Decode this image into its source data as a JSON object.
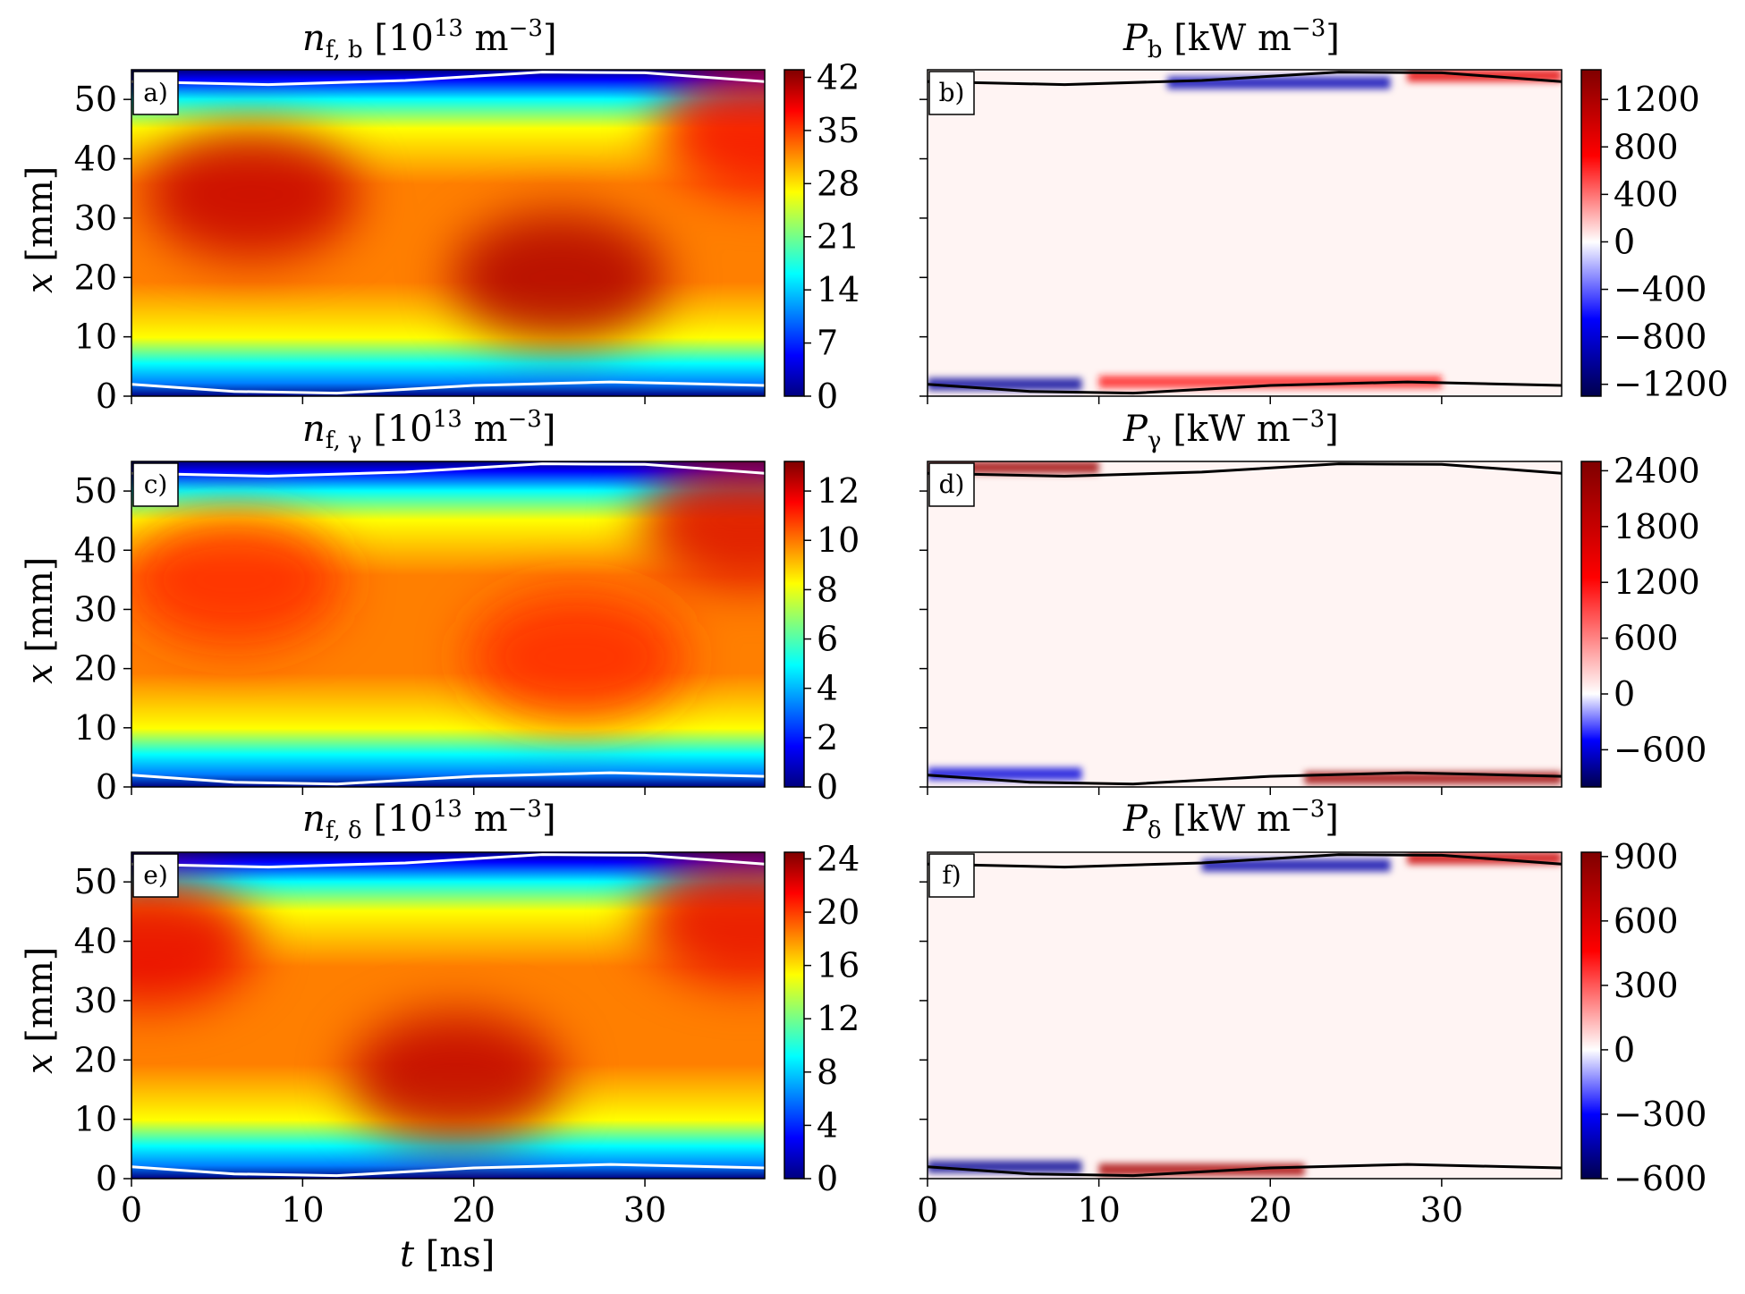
{
  "colors": {
    "jet": [
      "#00007f",
      "#0000ff",
      "#007fff",
      "#00ffff",
      "#7fff7f",
      "#ffff00",
      "#ff7f00",
      "#ff0000",
      "#7f0000"
    ],
    "seismic": [
      "#00004c",
      "#0000ff",
      "#ffffff",
      "#ff0000",
      "#7f0000"
    ],
    "boundary_left": "#ffffff",
    "boundary_right": "#000000"
  },
  "axes": {
    "x_label_var": "t",
    "x_label_unit": "[ns]",
    "y_label_var": "x",
    "y_label_unit": "[mm]"
  },
  "chart_data": [
    {
      "id": "a",
      "panel_label": "a)",
      "type": "heatmap",
      "title": {
        "var": "n",
        "sub": "f, b",
        "unit_pre": "[10",
        "unit_exp": "13",
        "unit_mid": " m",
        "unit_exp2": "−3",
        "unit_post": "]"
      },
      "xlim": [
        0,
        37
      ],
      "ylim": [
        0,
        55
      ],
      "xticks": [
        0,
        10,
        20,
        30
      ],
      "yticks": [
        0,
        10,
        20,
        30,
        40,
        50
      ],
      "colormap": "jet",
      "clim": [
        0,
        43
      ],
      "cbar_ticks": [
        0,
        7,
        14,
        21,
        28,
        35,
        42
      ],
      "cbar_tick_labels": [
        "0",
        "7",
        "14",
        "21",
        "28",
        "35",
        "42"
      ],
      "peaks": [
        {
          "t": 7,
          "x": 34,
          "value": 40
        },
        {
          "t": 25,
          "x": 20,
          "value": 41
        },
        {
          "t": 37,
          "x": 45,
          "value": 38
        }
      ],
      "boundaries": {
        "lower": [
          [
            0,
            2
          ],
          [
            6,
            0.8
          ],
          [
            12,
            0.5
          ],
          [
            20,
            1.8
          ],
          [
            28,
            2.4
          ],
          [
            37,
            1.8
          ]
        ],
        "upper": [
          [
            0,
            53
          ],
          [
            8,
            52.5
          ],
          [
            16,
            53.2
          ],
          [
            24,
            54.6
          ],
          [
            30,
            54.5
          ],
          [
            37,
            53
          ]
        ]
      }
    },
    {
      "id": "b",
      "panel_label": "b)",
      "type": "heatmap",
      "title": {
        "var": "P",
        "sub": "b",
        "unit_pre": "[kW m",
        "unit_exp": "−3",
        "unit_post": "]"
      },
      "xlim": [
        0,
        37
      ],
      "ylim": [
        0,
        55
      ],
      "xticks": [
        0,
        10,
        20,
        30
      ],
      "yticks": [
        0,
        10,
        20,
        30,
        40,
        50
      ],
      "colormap": "seismic",
      "clim": [
        -1300,
        1450
      ],
      "cbar_ticks": [
        -1200,
        -800,
        -400,
        0,
        400,
        800,
        1200
      ],
      "cbar_tick_labels": [
        "−1200",
        "−800",
        "−400",
        "0",
        "400",
        "800",
        "1200"
      ],
      "features": [
        {
          "t0": 0,
          "t1": 9,
          "x": 2,
          "value": -1000
        },
        {
          "t0": 10,
          "t1": 30,
          "x": 2.4,
          "value": 700
        },
        {
          "t0": 14,
          "t1": 27,
          "x": 52.8,
          "value": -900
        },
        {
          "t0": 28,
          "t1": 37,
          "x": 54,
          "value": 900
        }
      ],
      "boundaries": {
        "lower": [
          [
            0,
            2
          ],
          [
            6,
            0.8
          ],
          [
            12,
            0.5
          ],
          [
            20,
            1.8
          ],
          [
            28,
            2.4
          ],
          [
            37,
            1.8
          ]
        ],
        "upper": [
          [
            0,
            53
          ],
          [
            8,
            52.5
          ],
          [
            16,
            53.2
          ],
          [
            24,
            54.6
          ],
          [
            30,
            54.5
          ],
          [
            37,
            53
          ]
        ]
      }
    },
    {
      "id": "c",
      "panel_label": "c)",
      "type": "heatmap",
      "title": {
        "var": "n",
        "sub": "f, γ",
        "unit_pre": "[10",
        "unit_exp": "13",
        "unit_mid": " m",
        "unit_exp2": "−3",
        "unit_post": "]"
      },
      "xlim": [
        0,
        37
      ],
      "ylim": [
        0,
        55
      ],
      "xticks": [
        0,
        10,
        20,
        30
      ],
      "yticks": [
        0,
        10,
        20,
        30,
        40,
        50
      ],
      "colormap": "jet",
      "clim": [
        0,
        13.2
      ],
      "cbar_ticks": [
        0,
        2,
        4,
        6,
        8,
        10,
        12
      ],
      "cbar_tick_labels": [
        "0",
        "2",
        "4",
        "6",
        "8",
        "10",
        "12"
      ],
      "peaks": [
        {
          "t": 6,
          "x": 35,
          "value": 11
        },
        {
          "t": 26,
          "x": 22,
          "value": 11
        },
        {
          "t": 36,
          "x": 45,
          "value": 12
        }
      ],
      "boundaries": {
        "lower": [
          [
            0,
            2
          ],
          [
            6,
            0.8
          ],
          [
            12,
            0.5
          ],
          [
            20,
            1.8
          ],
          [
            28,
            2.4
          ],
          [
            37,
            1.8
          ]
        ],
        "upper": [
          [
            0,
            53
          ],
          [
            8,
            52.5
          ],
          [
            16,
            53.2
          ],
          [
            24,
            54.6
          ],
          [
            30,
            54.5
          ],
          [
            37,
            53
          ]
        ]
      }
    },
    {
      "id": "d",
      "panel_label": "d)",
      "type": "heatmap",
      "title": {
        "var": "P",
        "sub": "γ",
        "unit_pre": "[kW m",
        "unit_exp": "−3",
        "unit_post": "]"
      },
      "xlim": [
        0,
        37
      ],
      "ylim": [
        0,
        55
      ],
      "xticks": [
        0,
        10,
        20,
        30
      ],
      "yticks": [
        0,
        10,
        20,
        30,
        40,
        50
      ],
      "colormap": "seismic",
      "clim": [
        -1000,
        2500
      ],
      "cbar_ticks": [
        -600,
        0,
        600,
        1200,
        1800,
        2400
      ],
      "cbar_tick_labels": [
        "−600",
        "0",
        "600",
        "1200",
        "1800",
        "2400"
      ],
      "features": [
        {
          "t0": 0,
          "t1": 10,
          "x": 54,
          "value": 2300
        },
        {
          "t0": 22,
          "t1": 37,
          "x": 1.5,
          "value": 2300
        },
        {
          "t0": 0,
          "t1": 9,
          "x": 2.2,
          "value": -300
        }
      ],
      "boundaries": {
        "lower": [
          [
            0,
            2
          ],
          [
            6,
            0.8
          ],
          [
            12,
            0.5
          ],
          [
            20,
            1.8
          ],
          [
            28,
            2.4
          ],
          [
            37,
            1.8
          ]
        ],
        "upper": [
          [
            0,
            53
          ],
          [
            8,
            52.5
          ],
          [
            16,
            53.2
          ],
          [
            24,
            54.6
          ],
          [
            30,
            54.5
          ],
          [
            37,
            53
          ]
        ]
      }
    },
    {
      "id": "e",
      "panel_label": "e)",
      "type": "heatmap",
      "title": {
        "var": "n",
        "sub": "f, δ",
        "unit_pre": "[10",
        "unit_exp": "13",
        "unit_mid": " m",
        "unit_exp2": "−3",
        "unit_post": "]"
      },
      "xlim": [
        0,
        37
      ],
      "ylim": [
        0,
        55
      ],
      "xticks": [
        0,
        10,
        20,
        30
      ],
      "yticks": [
        0,
        10,
        20,
        30,
        40,
        50
      ],
      "colormap": "jet",
      "clim": [
        0,
        24.5
      ],
      "cbar_ticks": [
        0,
        4,
        8,
        12,
        16,
        20,
        24
      ],
      "cbar_tick_labels": [
        "0",
        "4",
        "8",
        "12",
        "16",
        "20",
        "24"
      ],
      "peaks": [
        {
          "t": 1,
          "x": 40,
          "value": 22
        },
        {
          "t": 19,
          "x": 17,
          "value": 23
        },
        {
          "t": 36,
          "x": 44,
          "value": 22
        }
      ],
      "boundaries": {
        "lower": [
          [
            0,
            2
          ],
          [
            6,
            0.8
          ],
          [
            12,
            0.5
          ],
          [
            20,
            1.8
          ],
          [
            28,
            2.4
          ],
          [
            37,
            1.8
          ]
        ],
        "upper": [
          [
            0,
            53
          ],
          [
            8,
            52.5
          ],
          [
            16,
            53.2
          ],
          [
            24,
            54.6
          ],
          [
            30,
            54.5
          ],
          [
            37,
            53
          ]
        ]
      }
    },
    {
      "id": "f",
      "panel_label": "f)",
      "type": "heatmap",
      "title": {
        "var": "P",
        "sub": "δ",
        "unit_pre": "[kW m",
        "unit_exp": "−3",
        "unit_post": "]"
      },
      "xlim": [
        0,
        37
      ],
      "ylim": [
        0,
        55
      ],
      "xticks": [
        0,
        10,
        20,
        30
      ],
      "yticks": [
        0,
        10,
        20,
        30,
        40,
        50
      ],
      "colormap": "seismic",
      "clim": [
        -600,
        920
      ],
      "cbar_ticks": [
        -600,
        -300,
        0,
        300,
        600,
        900
      ],
      "cbar_tick_labels": [
        "−600",
        "−300",
        "0",
        "300",
        "600",
        "900"
      ],
      "features": [
        {
          "t0": 0,
          "t1": 9,
          "x": 2,
          "value": -450
        },
        {
          "t0": 10,
          "t1": 22,
          "x": 1.5,
          "value": 800
        },
        {
          "t0": 16,
          "t1": 27,
          "x": 52.8,
          "value": -400
        },
        {
          "t0": 28,
          "t1": 37,
          "x": 54,
          "value": 700
        }
      ],
      "boundaries": {
        "lower": [
          [
            0,
            2
          ],
          [
            6,
            0.8
          ],
          [
            12,
            0.5
          ],
          [
            20,
            1.8
          ],
          [
            28,
            2.4
          ],
          [
            37,
            1.8
          ]
        ],
        "upper": [
          [
            0,
            53
          ],
          [
            8,
            52.5
          ],
          [
            16,
            53.2
          ],
          [
            24,
            54.6
          ],
          [
            30,
            54.5
          ],
          [
            37,
            53
          ]
        ]
      }
    }
  ]
}
